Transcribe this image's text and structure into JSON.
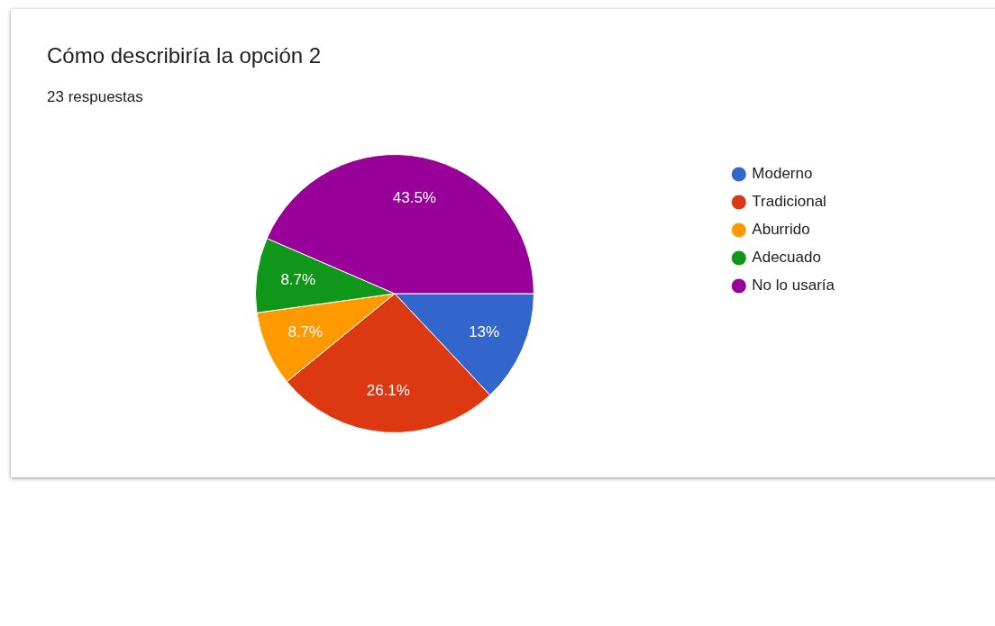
{
  "chart_data": {
    "type": "pie",
    "title": "Cómo describiría la opción 2",
    "subtitle": "23 respuestas",
    "categories": [
      "Moderno",
      "Tradicional",
      "Aburrido",
      "Adecuado",
      "No lo usaría"
    ],
    "values": [
      13,
      26.1,
      8.7,
      8.7,
      43.5
    ],
    "colors": [
      "#3366cc",
      "#dc3912",
      "#ff9900",
      "#109618",
      "#990099"
    ],
    "value_labels": [
      "13%",
      "26.1%",
      "8.7%",
      "8.7%",
      "43.5%"
    ],
    "legend": "right"
  }
}
